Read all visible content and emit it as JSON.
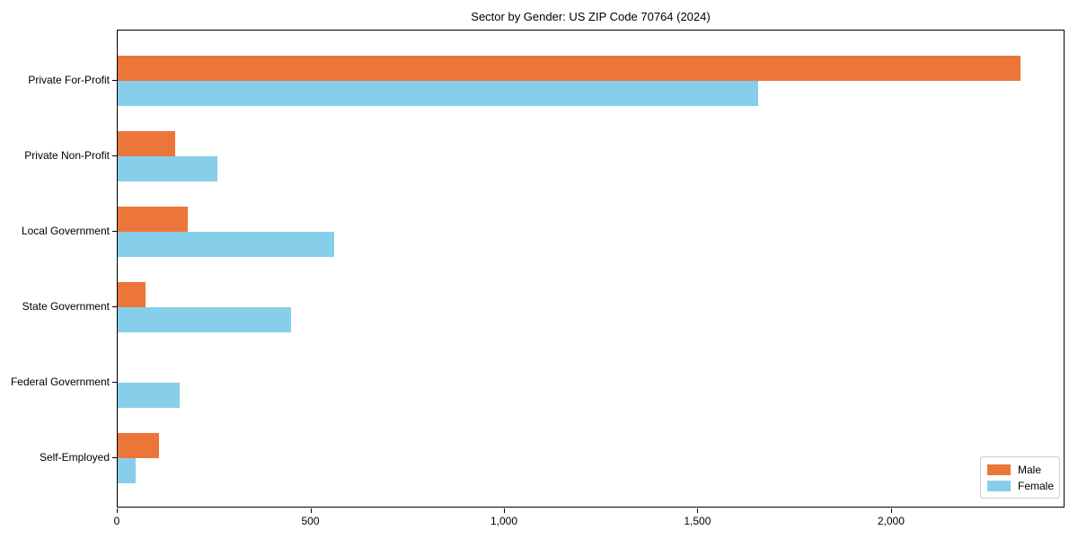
{
  "title": "Sector by Gender: US ZIP Code 70764 (2024)",
  "chart_data": {
    "type": "bar",
    "orientation": "horizontal",
    "title": "Sector by Gender: US ZIP Code 70764 (2024)",
    "xlabel": "",
    "ylabel": "",
    "categories": [
      "Private For-Profit",
      "Private Non-Profit",
      "Local Government",
      "State Government",
      "Federal Government",
      "Self-Employed"
    ],
    "series": [
      {
        "name": "Male",
        "color": "#EC7639",
        "values": [
          2331,
          149,
          181,
          71,
          0,
          106
        ]
      },
      {
        "name": "Female",
        "color": "#87CEEB",
        "values": [
          1654,
          258,
          559,
          448,
          159,
          47
        ]
      }
    ],
    "xlim": [
      0,
      2448
    ],
    "xticks": [
      0,
      500,
      1000,
      1500,
      2000
    ],
    "xtick_labels": [
      "0",
      "500",
      "1,000",
      "1,500",
      "2,000"
    ],
    "grid": false,
    "legend": {
      "position": "lower-right",
      "labels": [
        "Male",
        "Female"
      ]
    },
    "axis_color": "#000000",
    "background_color": "#ffffff"
  }
}
